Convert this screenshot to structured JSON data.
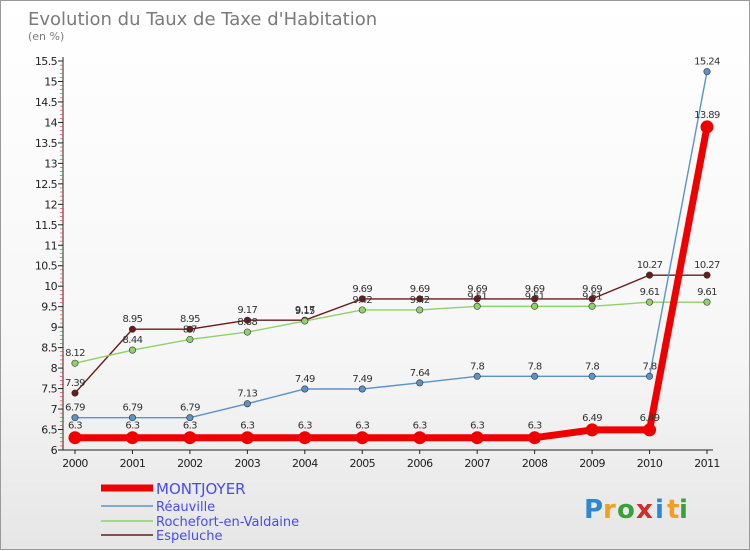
{
  "chart_data": {
    "type": "line",
    "title": "Evolution du Taux de Taxe d'Habitation",
    "subtitle": "(en %)",
    "categories": [
      "2000",
      "2001",
      "2002",
      "2003",
      "2004",
      "2005",
      "2006",
      "2007",
      "2008",
      "2009",
      "2010",
      "2011"
    ],
    "ylim": [
      6,
      15.5
    ],
    "yticks": [
      "6",
      "6.5",
      "7",
      "7.5",
      "8",
      "8.5",
      "9",
      "9.5",
      "10",
      "10.5",
      "11",
      "11.5",
      "12",
      "12.5",
      "13",
      "13.5",
      "14",
      "14.5",
      "15",
      "15.5"
    ],
    "grid": false,
    "legend_position": "bottom-left",
    "series": [
      {
        "name": "Espeluche",
        "color": "#6b1a1a",
        "values": [
          7.39,
          8.95,
          8.95,
          9.17,
          9.17,
          9.69,
          9.69,
          9.69,
          9.69,
          9.69,
          10.27,
          10.27
        ],
        "labels": [
          "7.39",
          "8.95",
          "8.95",
          "9.17",
          "9.17",
          "9.69",
          "9.69",
          "9.69",
          "9.69",
          "9.69",
          "10.27",
          "10.27"
        ]
      },
      {
        "name": "Rochefort-en-Valdaine",
        "color": "#8fd16a",
        "values": [
          8.12,
          8.44,
          8.7,
          8.88,
          9.15,
          9.42,
          9.42,
          9.51,
          9.51,
          9.51,
          9.61,
          9.61
        ],
        "labels": [
          "8.12",
          "8.44",
          "8.7",
          "8.88",
          "9.15",
          "9.42",
          "9.42",
          "9.51",
          "9.51",
          "9.51",
          "9.61",
          "9.61"
        ]
      },
      {
        "name": "Réauville",
        "color": "#5b93c9",
        "values": [
          6.79,
          6.79,
          6.79,
          7.13,
          7.49,
          7.49,
          7.64,
          7.8,
          7.8,
          7.8,
          7.8,
          15.24
        ],
        "labels": [
          "6.79",
          "6.79",
          "6.79",
          "7.13",
          "7.49",
          "7.49",
          "7.64",
          "7.8",
          "7.8",
          "7.8",
          "7.8",
          "15.24"
        ]
      },
      {
        "name": "MONTJOYER",
        "color": "#ee0000",
        "values": [
          6.3,
          6.3,
          6.3,
          6.3,
          6.3,
          6.3,
          6.3,
          6.3,
          6.3,
          6.49,
          6.49,
          13.89
        ],
        "labels": [
          "6.3",
          "6.3",
          "6.3",
          "6.3",
          "6.3",
          "6.3",
          "6.3",
          "6.3",
          "6.3",
          "6.49",
          "6.49",
          "13.89"
        ]
      }
    ],
    "legend_order": [
      "MONTJOYER",
      "Réauville",
      "Rochefort-en-Valdaine",
      "Espeluche"
    ]
  },
  "logo": {
    "letters": [
      "P",
      "r",
      "o",
      "x",
      "i",
      "t",
      "i"
    ],
    "colors": [
      "#2f86d1",
      "#f0a020",
      "#39a03a",
      "#d62b2b",
      "#2f86d1",
      "#f0a020",
      "#39a03a"
    ]
  }
}
